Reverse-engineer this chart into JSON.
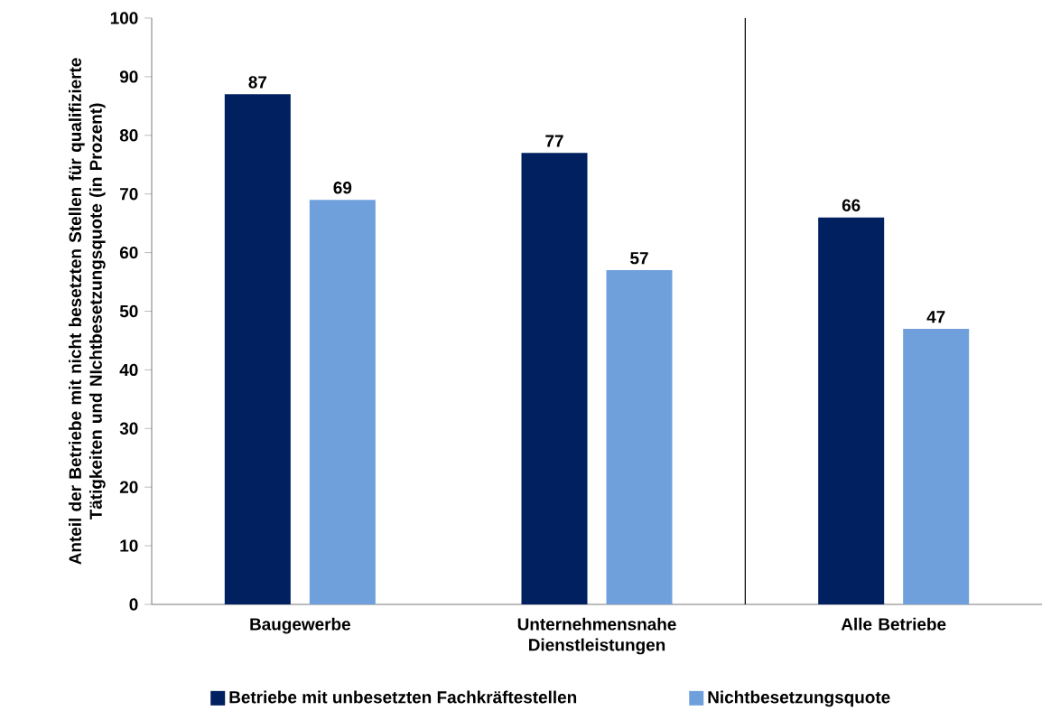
{
  "chart_data": {
    "type": "bar",
    "ylabel": "Anteil der Betriebe mit nicht besetzten Stellen für qualifizierte Tätigkeiten und NIchtbesetzungsquote (in Prozent)",
    "categories": [
      "Baugewerbe",
      "Unternehmensnahe Dienstleistungen",
      "Alle Betriebe"
    ],
    "series": [
      {
        "name": "Betriebe mit unbesetzten Fachkräftestellen",
        "color": "#002060",
        "values": [
          87,
          77,
          66
        ]
      },
      {
        "name": "Nichtbesetzungsquote",
        "color": "#6fa0dc",
        "values": [
          69,
          57,
          47
        ]
      }
    ],
    "ylim": [
      0,
      100
    ],
    "yticks": [
      0,
      10,
      20,
      30,
      40,
      50,
      60,
      70,
      80,
      90,
      100
    ],
    "data_labels": true,
    "legend": "bottom"
  }
}
